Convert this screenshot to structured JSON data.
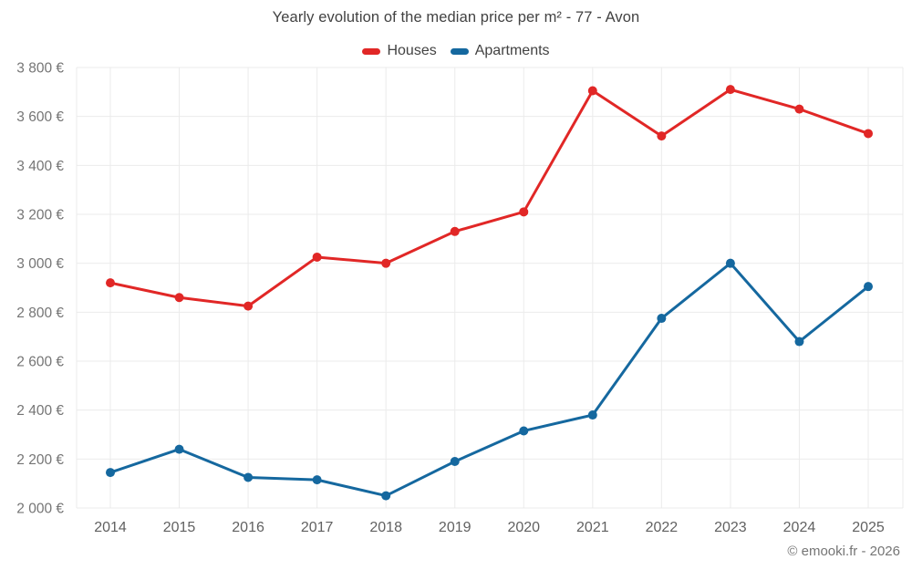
{
  "title": "Yearly evolution of the median price per m² - 77 - Avon",
  "footer": {
    "copyright": "© emooki.fr - 2026"
  },
  "colors": {
    "background": "#ffffff",
    "grid": "#ebebeb",
    "y_tick_text": "#757575",
    "x_tick_text": "#616161",
    "title_text": "#424242",
    "houses": "#e12726",
    "apartments": "#15689f"
  },
  "chart_data": {
    "type": "line",
    "title": "Yearly evolution of the median price per m² - 77 - Avon",
    "xlabel": "",
    "ylabel": "",
    "grid": true,
    "legend_position": "top",
    "categories": [
      "2014",
      "2015",
      "2016",
      "2017",
      "2018",
      "2019",
      "2020",
      "2021",
      "2022",
      "2023",
      "2024",
      "2025"
    ],
    "series": [
      {
        "name": "Houses",
        "color": "#e12726",
        "values": [
          2920,
          2860,
          2825,
          3025,
          3000,
          3130,
          3210,
          3705,
          3520,
          3710,
          3630,
          3530
        ]
      },
      {
        "name": "Apartments",
        "color": "#15689f",
        "values": [
          2145,
          2240,
          2125,
          2115,
          2050,
          2190,
          2315,
          2380,
          2775,
          3000,
          2680,
          2905
        ]
      }
    ],
    "ylim": [
      2000,
      3800
    ],
    "y_ticks": [
      {
        "value": 2000,
        "label": "2 000 €"
      },
      {
        "value": 2200,
        "label": "2 200 €"
      },
      {
        "value": 2400,
        "label": "2 400 €"
      },
      {
        "value": 2600,
        "label": "2 600 €"
      },
      {
        "value": 2800,
        "label": "2 800 €"
      },
      {
        "value": 3000,
        "label": "3 000 €"
      },
      {
        "value": 3200,
        "label": "3 200 €"
      },
      {
        "value": 3400,
        "label": "3 400 €"
      },
      {
        "value": 3600,
        "label": "3 600 €"
      },
      {
        "value": 3800,
        "label": "3 800 €"
      }
    ]
  }
}
